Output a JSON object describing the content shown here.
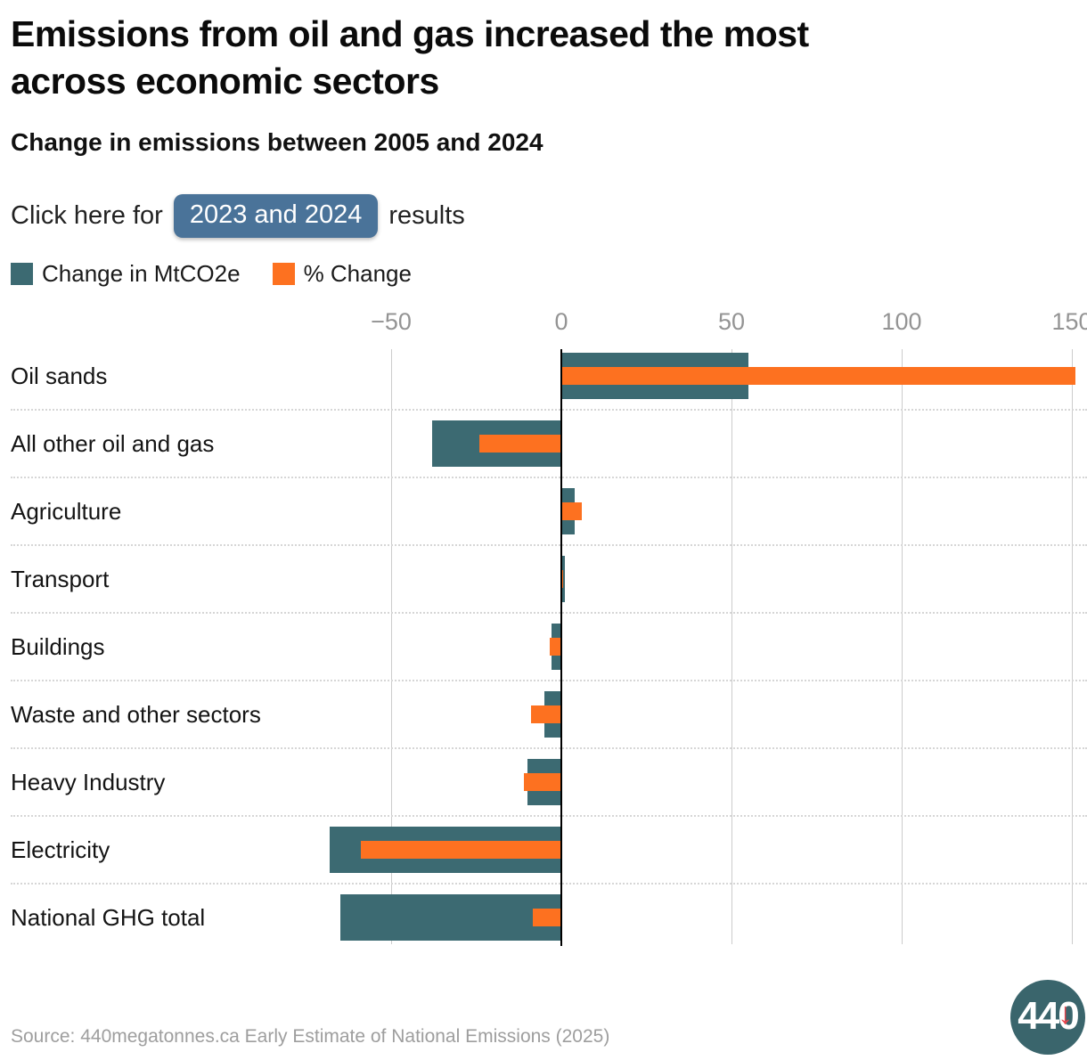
{
  "header": {
    "title_lines": [
      "Emissions from oil and gas increased the most",
      "across economic sectors"
    ],
    "subtitle": "Change in emissions between 2005 and 2024",
    "cta_prefix": "Click here for",
    "cta_button_label": "2023 and 2024",
    "cta_suffix": "results"
  },
  "legend": [
    {
      "label": "Change in MtCO2e",
      "color": "#3c6a72"
    },
    {
      "label": "% Change",
      "color": "#fd7120"
    }
  ],
  "chart_data": {
    "type": "bar",
    "orientation": "horizontal",
    "title": "Change in emissions between 2005 and 2024",
    "categories": [
      "Oil sands",
      "All other oil and gas",
      "Agriculture",
      "Transport",
      "Buildings",
      "Waste and other sectors",
      "Heavy Industry",
      "Electricity",
      "National GHG total"
    ],
    "series": [
      {
        "name": "Change in MtCO2e",
        "color": "#3c6a72",
        "values": [
          55,
          -38,
          4,
          1,
          -3,
          -5,
          -10,
          -68,
          -65
        ]
      },
      {
        "name": "% Change",
        "color": "#fd7120",
        "values": [
          151,
          -24,
          6,
          0.5,
          -3.5,
          -9,
          -11,
          -59,
          -8.5
        ]
      }
    ],
    "x_ticks": [
      -50,
      0,
      50,
      100,
      150
    ],
    "x_tick_labels": [
      "−50",
      "0",
      "50",
      "100",
      "150"
    ],
    "xlim": [
      -68,
      151
    ],
    "grid": "vertical",
    "legend_position": "top",
    "grid_color": "#cccccc",
    "axis_color": "#000000",
    "separator_color": "#d6d6d6",
    "tick_label_color": "#949494"
  },
  "footer": {
    "source": "Source: 440megatonnes.ca Early Estimate of National Emissions (2025)",
    "logo_text": "440",
    "logo_arrow": "↓"
  },
  "colors": {
    "button_bg": "#4a7399",
    "logo_bg": "#3a656c",
    "logo_arrow": "#e8444c"
  }
}
